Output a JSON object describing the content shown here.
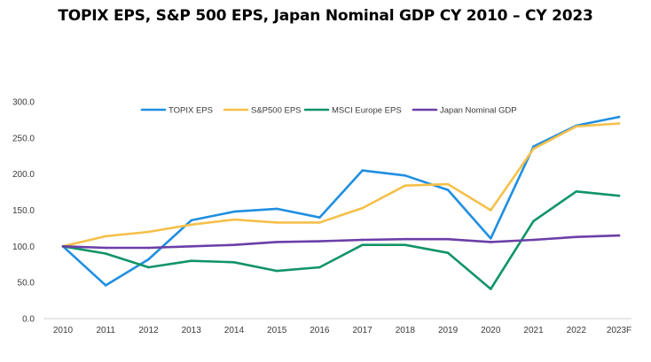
{
  "chart_data": {
    "type": "line",
    "title": "TOPIX EPS, S&P 500 EPS, Japan Nominal GDP CY 2010 – CY 2023",
    "xlabel": "",
    "ylabel": "",
    "categories": [
      "2010",
      "2011",
      "2012",
      "2013",
      "2014",
      "2015",
      "2016",
      "2017",
      "2018",
      "2019",
      "2020",
      "2021",
      "2022",
      "2023F"
    ],
    "ylim": [
      0,
      300
    ],
    "yticks": [
      0,
      50,
      100,
      150,
      200,
      250,
      300
    ],
    "ytick_labels": [
      "0.0",
      "50.0",
      "100.0",
      "150.0",
      "200.0",
      "250.0",
      "300.0"
    ],
    "grid": false,
    "legend_position": "top",
    "series": [
      {
        "name": "TOPIX EPS",
        "color": "#1f8fe0",
        "values": [
          100,
          46,
          82,
          136,
          148,
          152,
          140,
          205,
          198,
          178,
          111,
          238,
          267,
          279
        ]
      },
      {
        "name": "S&P500 EPS",
        "color": "#f5c04a",
        "values": [
          100,
          114,
          120,
          130,
          137,
          133,
          133,
          153,
          184,
          186,
          150,
          235,
          266,
          270
        ]
      },
      {
        "name": "MSCI Europe EPS",
        "color": "#119467",
        "values": [
          100,
          90,
          71,
          80,
          78,
          66,
          71,
          102,
          102,
          91,
          41,
          135,
          176,
          170
        ]
      },
      {
        "name": "Japan Nominal GDP",
        "color": "#6b3fa8",
        "values": [
          100,
          98,
          98,
          100,
          102,
          106,
          107,
          109,
          110,
          110,
          106,
          109,
          113,
          115
        ]
      }
    ]
  }
}
